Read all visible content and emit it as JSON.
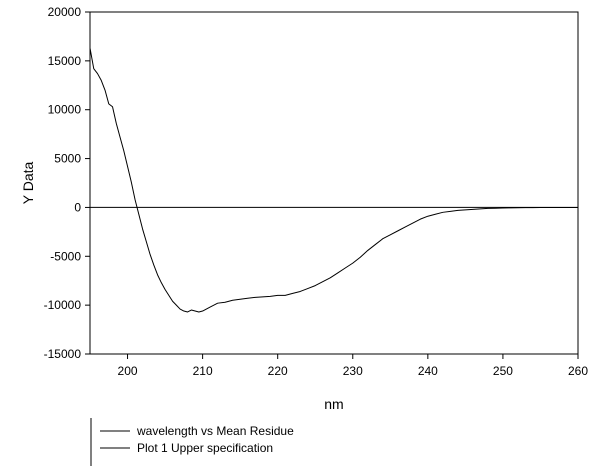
{
  "chart_data": {
    "type": "line",
    "title": "",
    "xlabel": "nm",
    "ylabel": "Y Data",
    "xlim": [
      195,
      260
    ],
    "ylim": [
      -15000,
      20000
    ],
    "xticks": [
      200,
      210,
      220,
      230,
      240,
      250,
      260
    ],
    "yticks": [
      -15000,
      -10000,
      -5000,
      0,
      5000,
      10000,
      15000,
      20000
    ],
    "grid": false,
    "legend_position": "bottom-left",
    "series": [
      {
        "name": "wavelength vs Mean Residue",
        "color": "#000000",
        "x": [
          195,
          195.5,
          196,
          196.5,
          197,
          197.5,
          198,
          198.5,
          199,
          199.5,
          200,
          200.5,
          201,
          201.5,
          202,
          202.5,
          203,
          203.5,
          204,
          204.5,
          205,
          205.5,
          206,
          206.5,
          207,
          207.5,
          208,
          208.5,
          209,
          209.5,
          210,
          210.5,
          211,
          212,
          213,
          214,
          215,
          216,
          217,
          218,
          219,
          220,
          221,
          222,
          223,
          224,
          225,
          226,
          227,
          228,
          229,
          230,
          231,
          232,
          233,
          234,
          235,
          236,
          237,
          238,
          239,
          240,
          241,
          242,
          243,
          244,
          245,
          246,
          247,
          248,
          249,
          250,
          251,
          252,
          253,
          254,
          255,
          256,
          257,
          258,
          259,
          260
        ],
        "values": [
          16300,
          14200,
          13700,
          13000,
          12000,
          10600,
          10300,
          8600,
          7200,
          5800,
          4200,
          2600,
          800,
          -700,
          -2200,
          -3500,
          -4800,
          -5900,
          -6900,
          -7700,
          -8400,
          -9000,
          -9600,
          -10000,
          -10400,
          -10600,
          -10700,
          -10500,
          -10600,
          -10700,
          -10600,
          -10400,
          -10200,
          -9800,
          -9700,
          -9500,
          -9400,
          -9300,
          -9200,
          -9150,
          -9100,
          -9000,
          -9000,
          -8800,
          -8600,
          -8300,
          -8000,
          -7600,
          -7200,
          -6700,
          -6200,
          -5700,
          -5100,
          -4400,
          -3800,
          -3200,
          -2800,
          -2400,
          -2000,
          -1600,
          -1200,
          -900,
          -700,
          -500,
          -400,
          -300,
          -250,
          -200,
          -150,
          -100,
          -80,
          -60,
          -40,
          -30,
          -20,
          -20,
          -10,
          -10,
          -10,
          -10,
          -10,
          -10
        ]
      },
      {
        "name": "Plot 1 Upper specification",
        "color": "#000000",
        "x": [
          195,
          260
        ],
        "values": [
          0,
          0
        ]
      }
    ]
  }
}
